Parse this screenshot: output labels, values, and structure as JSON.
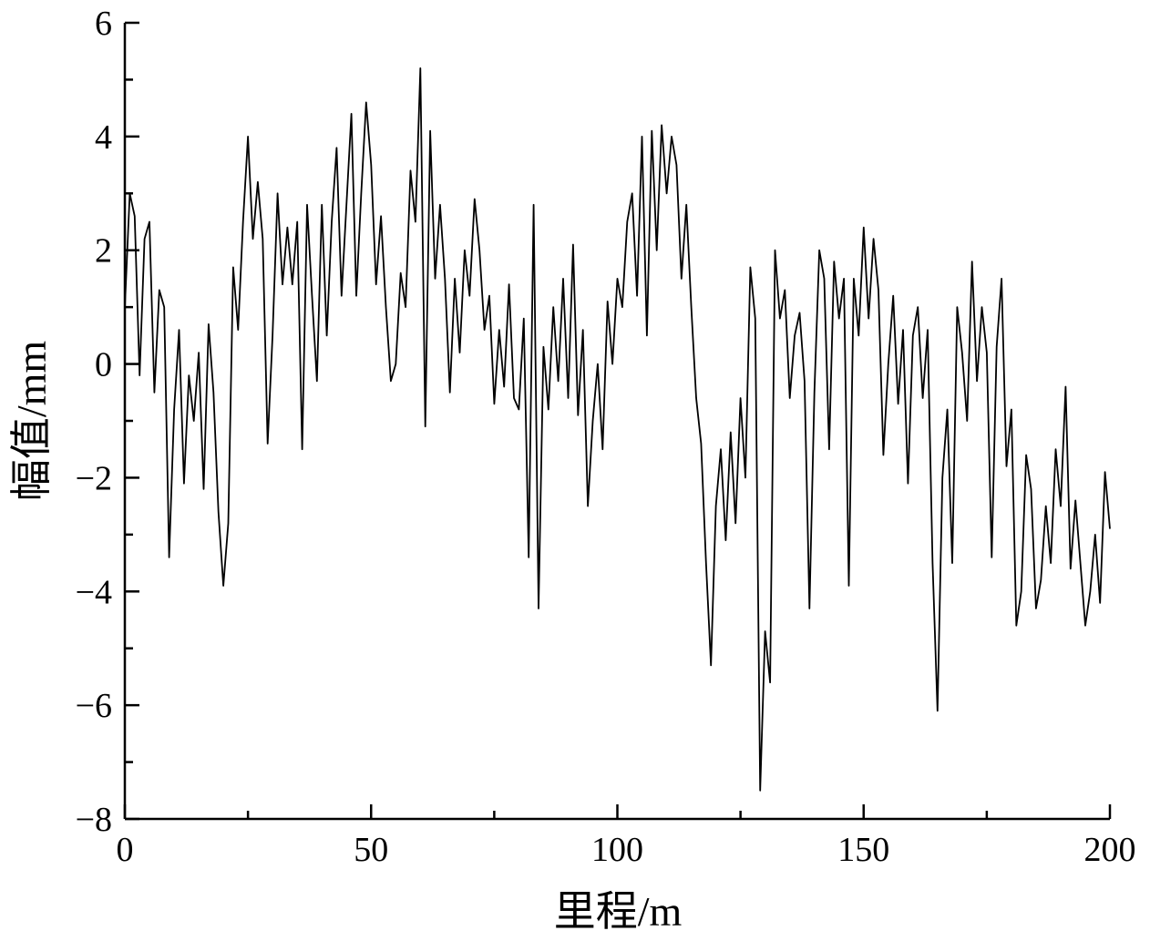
{
  "chart_data": {
    "type": "line",
    "x_label": "里程/m",
    "y_label": "幅值/mm",
    "x": [
      0,
      1,
      2,
      3,
      4,
      5,
      6,
      7,
      8,
      9,
      10,
      11,
      12,
      13,
      14,
      15,
      16,
      17,
      18,
      19,
      20,
      21,
      22,
      23,
      24,
      25,
      26,
      27,
      28,
      29,
      30,
      31,
      32,
      33,
      34,
      35,
      36,
      37,
      38,
      39,
      40,
      41,
      42,
      43,
      44,
      45,
      46,
      47,
      48,
      49,
      50,
      51,
      52,
      53,
      54,
      55,
      56,
      57,
      58,
      59,
      60,
      61,
      62,
      63,
      64,
      65,
      66,
      67,
      68,
      69,
      70,
      71,
      72,
      73,
      74,
      75,
      76,
      77,
      78,
      79,
      80,
      81,
      82,
      83,
      84,
      85,
      86,
      87,
      88,
      89,
      90,
      91,
      92,
      93,
      94,
      95,
      96,
      97,
      98,
      99,
      100,
      101,
      102,
      103,
      104,
      105,
      106,
      107,
      108,
      109,
      110,
      111,
      112,
      113,
      114,
      115,
      116,
      117,
      118,
      119,
      120,
      121,
      122,
      123,
      124,
      125,
      126,
      127,
      128,
      129,
      130,
      131,
      132,
      133,
      134,
      135,
      136,
      137,
      138,
      139,
      140,
      141,
      142,
      143,
      144,
      145,
      146,
      147,
      148,
      149,
      150,
      151,
      152,
      153,
      154,
      155,
      156,
      157,
      158,
      159,
      160,
      161,
      162,
      163,
      164,
      165,
      166,
      167,
      168,
      169,
      170,
      171,
      172,
      173,
      174,
      175,
      176,
      177,
      178,
      179,
      180,
      181,
      182,
      183,
      184,
      185,
      186,
      187,
      188,
      189,
      190,
      191,
      192,
      193,
      194,
      195,
      196,
      197,
      198,
      199,
      200
    ],
    "series": [
      {
        "color": "#000000",
        "values": [
          1.0,
          3.0,
          2.6,
          -0.2,
          2.2,
          2.5,
          -0.5,
          1.3,
          1.0,
          -3.4,
          -0.8,
          0.6,
          -2.1,
          -0.2,
          -1.0,
          0.2,
          -2.2,
          0.7,
          -0.5,
          -2.6,
          -3.9,
          -2.8,
          1.7,
          0.6,
          2.5,
          4.0,
          2.2,
          3.2,
          2.2,
          -1.4,
          0.5,
          3.0,
          1.4,
          2.4,
          1.4,
          2.5,
          -1.5,
          2.8,
          1.2,
          -0.3,
          2.8,
          0.5,
          2.5,
          3.8,
          1.2,
          2.8,
          4.4,
          1.2,
          3.0,
          4.6,
          3.5,
          1.4,
          2.6,
          1.0,
          -0.3,
          0.0,
          1.6,
          1.0,
          3.4,
          2.5,
          5.2,
          -1.1,
          4.1,
          1.5,
          2.8,
          1.5,
          -0.5,
          1.5,
          0.2,
          2.0,
          1.2,
          2.9,
          2.0,
          0.6,
          1.2,
          -0.7,
          0.6,
          -0.4,
          1.4,
          -0.6,
          -0.8,
          0.8,
          -3.4,
          2.8,
          -4.3,
          0.3,
          -0.8,
          1.0,
          -0.3,
          1.5,
          -0.6,
          2.1,
          -0.9,
          0.6,
          -2.5,
          -1.0,
          0.0,
          -1.5,
          1.1,
          0.0,
          1.5,
          1.0,
          2.5,
          3.0,
          1.2,
          4.0,
          0.5,
          4.1,
          2.0,
          4.2,
          3.0,
          4.0,
          3.5,
          1.5,
          2.8,
          1.0,
          -0.6,
          -1.4,
          -3.5,
          -5.3,
          -2.5,
          -1.5,
          -3.1,
          -1.2,
          -2.8,
          -0.6,
          -2.0,
          1.7,
          0.8,
          -7.5,
          -4.7,
          -5.6,
          2.0,
          0.8,
          1.3,
          -0.6,
          0.5,
          0.9,
          -0.3,
          -4.3,
          -0.5,
          2.0,
          1.5,
          -1.5,
          1.8,
          0.8,
          1.5,
          -3.9,
          1.5,
          0.5,
          2.4,
          0.8,
          2.2,
          1.3,
          -1.6,
          0.0,
          1.2,
          -0.7,
          0.6,
          -2.1,
          0.5,
          1.0,
          -0.6,
          0.6,
          -3.5,
          -6.1,
          -2.0,
          -0.8,
          -3.5,
          1.0,
          0.2,
          -1.0,
          1.8,
          -0.3,
          1.0,
          0.2,
          -3.4,
          0.3,
          1.5,
          -1.8,
          -0.8,
          -4.6,
          -4.0,
          -1.6,
          -2.2,
          -4.3,
          -3.8,
          -2.5,
          -3.5,
          -1.5,
          -2.5,
          -0.4,
          -3.6,
          -2.4,
          -3.5,
          -4.6,
          -4.0,
          -3.0,
          -4.2,
          -1.9,
          -2.9
        ]
      }
    ],
    "xlim": [
      0,
      200
    ],
    "xticks": [
      0,
      50,
      100,
      150,
      200
    ],
    "xminor": [
      25,
      75,
      125,
      175
    ],
    "ylim": [
      -8,
      6
    ],
    "yticks": [
      {
        "value": -8,
        "label": "−8"
      },
      {
        "value": -6,
        "label": "−6"
      },
      {
        "value": -4,
        "label": "−4"
      },
      {
        "value": -2,
        "label": "−2"
      },
      0,
      2,
      4,
      6
    ],
    "yminor": [
      -7,
      -5,
      -3,
      -1,
      1,
      3,
      5
    ]
  }
}
